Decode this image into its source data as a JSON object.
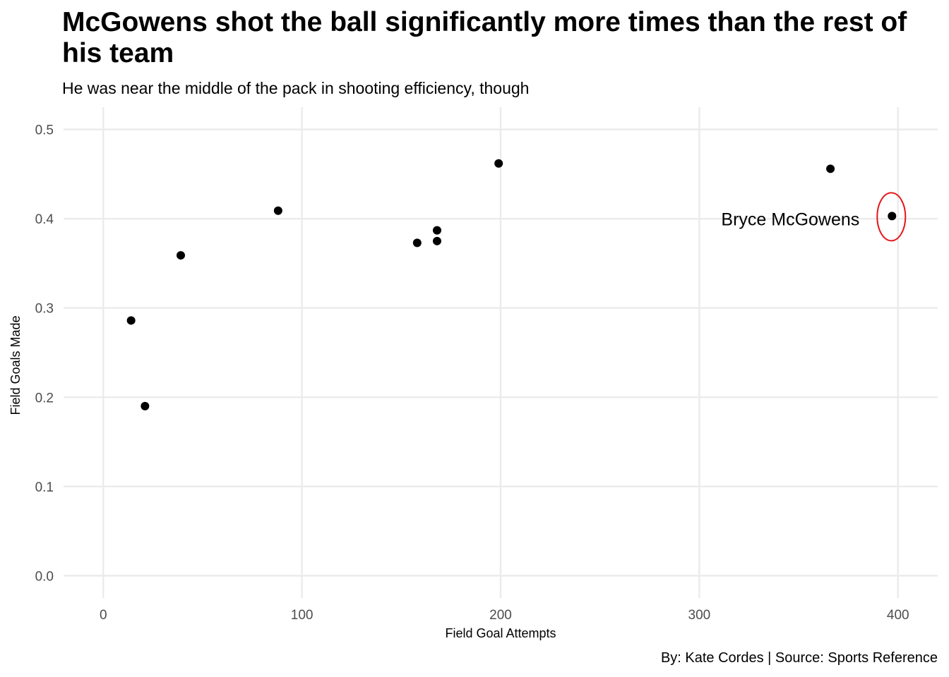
{
  "chart_data": {
    "type": "scatter",
    "title": "McGowens shot the ball significantly more times than the rest of his team",
    "subtitle": "He was near the middle of the pack in shooting efficiency, though",
    "caption": "By: Kate Cordes | Source: Sports Reference",
    "xlabel": "Field Goal Attempts",
    "ylabel": "Field Goals Made",
    "xlim": [
      -20,
      420
    ],
    "ylim": [
      -0.025,
      0.525
    ],
    "x_ticks": [
      0,
      100,
      200,
      300,
      400
    ],
    "x_tick_labels": [
      "0",
      "100",
      "200",
      "300",
      "400"
    ],
    "y_ticks": [
      0.0,
      0.1,
      0.2,
      0.3,
      0.4,
      0.5
    ],
    "y_tick_labels": [
      "0.0",
      "0.1",
      "0.2",
      "0.3",
      "0.4",
      "0.5"
    ],
    "grid": true,
    "points": [
      {
        "x": 14,
        "y": 0.286
      },
      {
        "x": 21,
        "y": 0.19
      },
      {
        "x": 39,
        "y": 0.359
      },
      {
        "x": 88,
        "y": 0.409
      },
      {
        "x": 158,
        "y": 0.373
      },
      {
        "x": 168,
        "y": 0.375
      },
      {
        "x": 168,
        "y": 0.387
      },
      {
        "x": 199,
        "y": 0.462
      },
      {
        "x": 366,
        "y": 0.456
      },
      {
        "x": 397,
        "y": 0.403
      }
    ],
    "annotation": {
      "label": "Bryce McGowens",
      "x": 397,
      "y": 0.403,
      "highlight_color": "#e41a1c"
    },
    "point_color": "#000000"
  }
}
